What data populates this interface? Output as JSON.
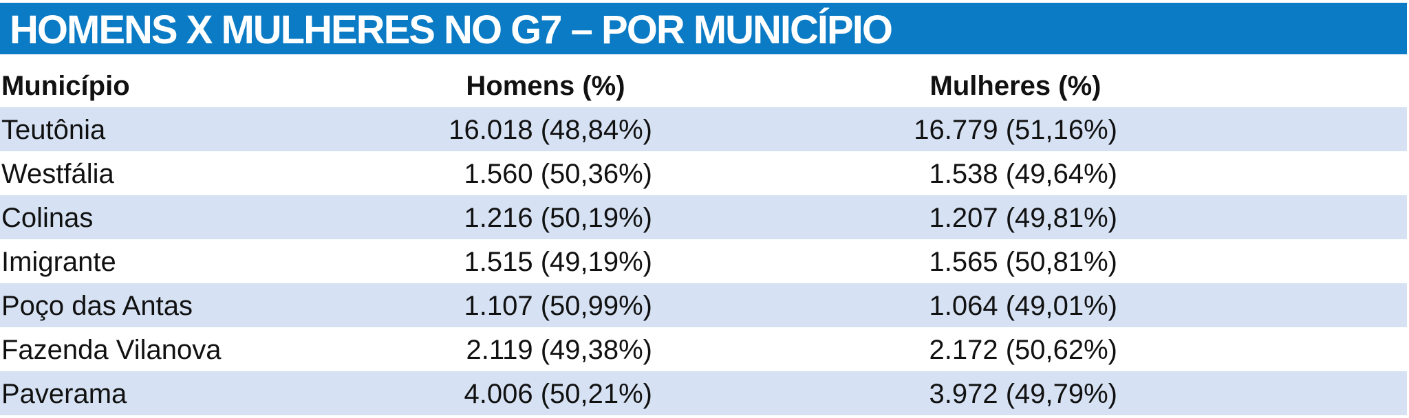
{
  "header": {
    "title": "HOMENS X MULHERES NO G7 – POR MUNICÍPIO"
  },
  "table": {
    "columns": [
      "Município",
      "Homens (%)",
      "Mulheres (%)"
    ],
    "rows": [
      [
        "Teutônia",
        "16.018 (48,84%)",
        "16.779 (51,16%)"
      ],
      [
        "Westfália",
        "1.560 (50,36%)",
        "1.538 (49,64%)"
      ],
      [
        "Colinas",
        "1.216 (50,19%)",
        "1.207 (49,81%)"
      ],
      [
        "Imigrante",
        "1.515 (49,19%)",
        "1.565 (50,81%)"
      ],
      [
        "Poço das Antas",
        "1.107 (50,99%)",
        "1.064 (49,01%)"
      ],
      [
        "Fazenda Vilanova",
        "2.119 (49,38%)",
        "2.172 (50,62%)"
      ],
      [
        "Paverama",
        "4.006 (50,21%)",
        "3.972 (49,79%)"
      ]
    ]
  }
}
